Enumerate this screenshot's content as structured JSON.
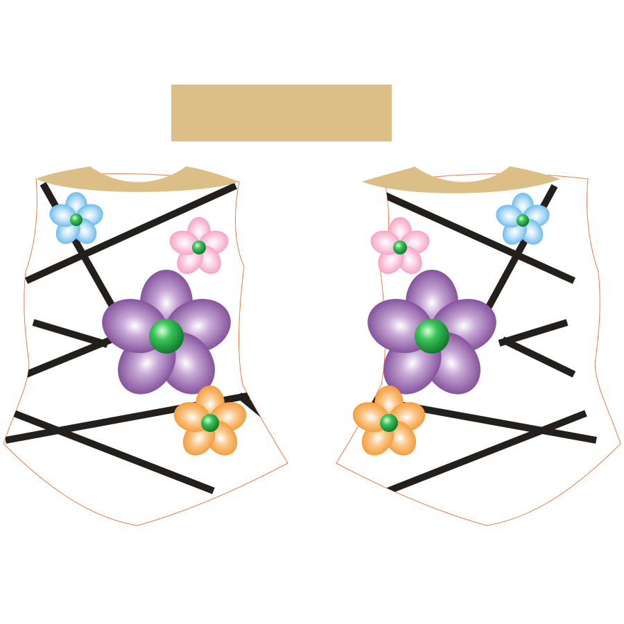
{
  "palette": {
    "background": "#ffffff",
    "beige": "#dcbf86",
    "outline": "#f07a4a",
    "strap": "#231f1c",
    "flower_blue": "#5fb4ea",
    "flower_pink": "#f59ac0",
    "flower_purple": "#7a4592",
    "flower_orange": "#f3962f",
    "flower_center": "#2aa845"
  },
  "pieces": {
    "sleeve_strip": "beige-rectangle",
    "front": {
      "view": "front",
      "neckline": "beige-yoke"
    },
    "back": {
      "view": "back-mirrored",
      "neckline": "beige-yoke"
    }
  },
  "flowers": [
    {
      "color": "blue",
      "petals": 5
    },
    {
      "color": "pink",
      "petals": 5
    },
    {
      "color": "purple",
      "petals": 5
    },
    {
      "color": "orange",
      "petals": 5
    }
  ]
}
